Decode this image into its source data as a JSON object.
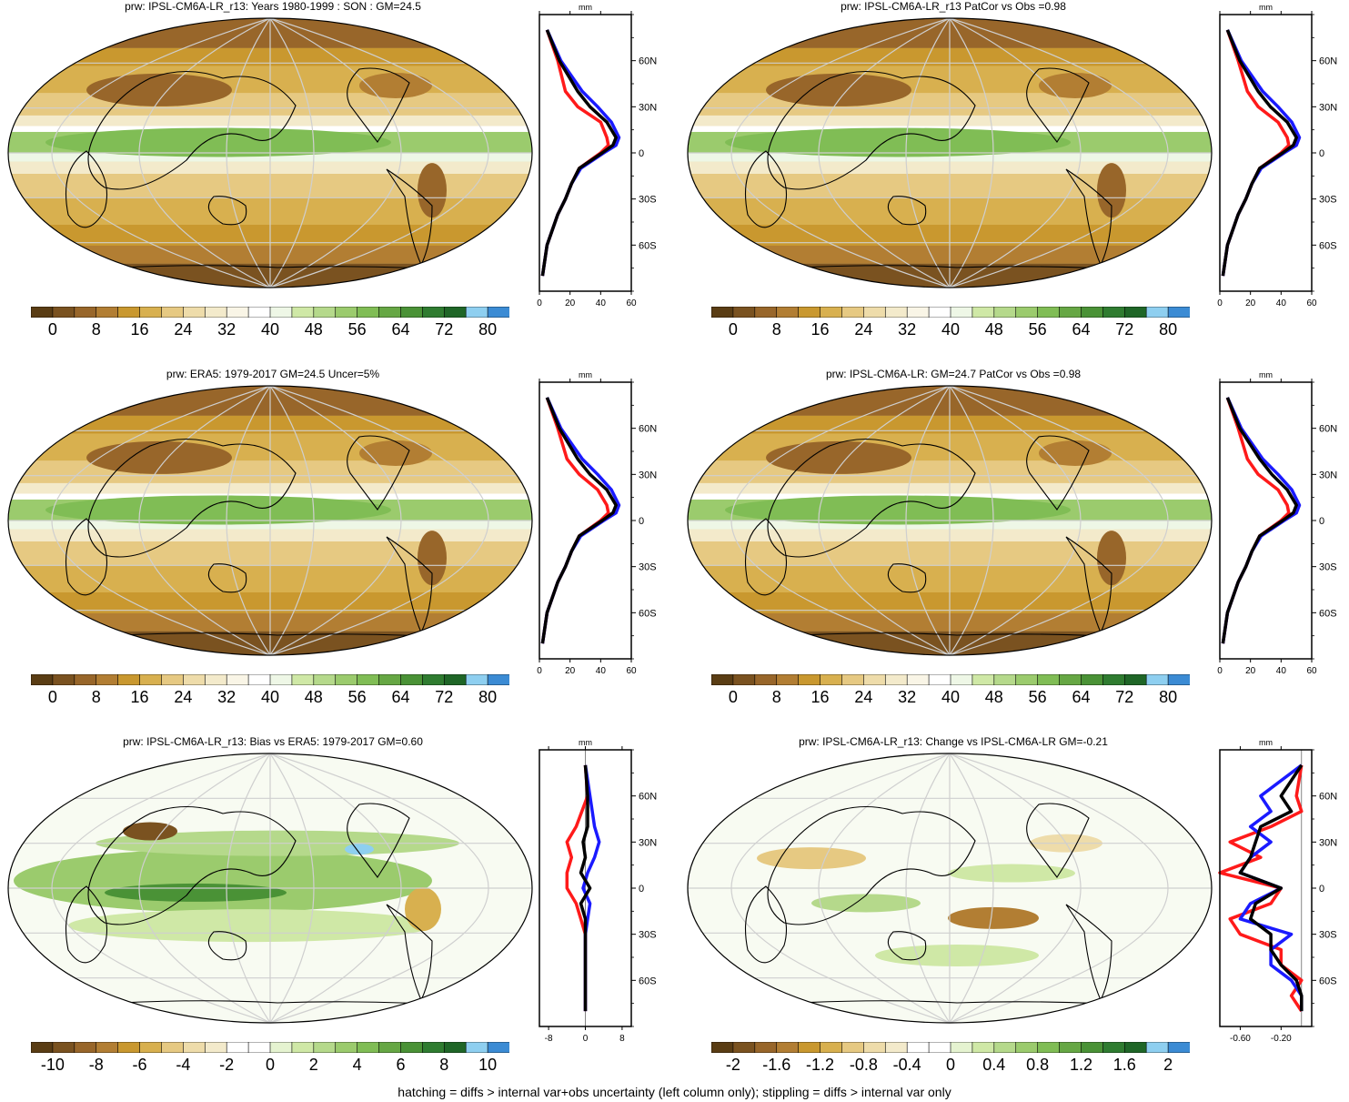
{
  "footer": "hatching = diffs > internal var+obs uncertainty (left column only); stippling = diffs > internal var only",
  "palette_abs": [
    "#5a3d14",
    "#7a5220",
    "#98662a",
    "#b27e33",
    "#c9982f",
    "#d8b04f",
    "#e6c982",
    "#eedcaa",
    "#f3eacb",
    "#f9f5e6",
    "#ffffff",
    "#eef7e6",
    "#cfe8a6",
    "#b5d98b",
    "#9bcb6d",
    "#80bd55",
    "#66a744",
    "#4a9236",
    "#2f7c30",
    "#1f6627",
    "#8ecff0",
    "#3b8bd4"
  ],
  "palette_div": [
    "#5a3d14",
    "#7a5220",
    "#98662a",
    "#b27e33",
    "#c9982f",
    "#d8b04f",
    "#e6c982",
    "#eedcaa",
    "#f3eacb",
    "#ffffff",
    "#ffffff",
    "#e5f3d0",
    "#cfe8a6",
    "#b5d98b",
    "#9bcb6d",
    "#80bd55",
    "#66a744",
    "#4a9236",
    "#2f7c30",
    "#1f6627",
    "#8ecff0",
    "#3b8bd4"
  ],
  "panels": [
    {
      "title": "prw: IPSL-CM6A-LR_r13: Years 1980-1999 : SON : GM=24.5",
      "cbar_labels": [
        "0",
        "8",
        "16",
        "24",
        "32",
        "40",
        "48",
        "56",
        "64",
        "72",
        "80"
      ],
      "cbar_kind": "abs"
    },
    {
      "title": "prw: IPSL-CM6A-LR_r13 PatCor vs Obs =0.98",
      "cbar_labels": [
        "0",
        "8",
        "16",
        "24",
        "32",
        "40",
        "48",
        "56",
        "64",
        "72",
        "80"
      ],
      "cbar_kind": "abs"
    },
    {
      "title": "prw: ERA5: 1979-2017 GM=24.5 Uncer=5%",
      "cbar_labels": [
        "0",
        "8",
        "16",
        "24",
        "32",
        "40",
        "48",
        "56",
        "64",
        "72",
        "80"
      ],
      "cbar_kind": "abs"
    },
    {
      "title": "prw: IPSL-CM6A-LR: GM=24.7 PatCor vs Obs =0.98",
      "cbar_labels": [
        "0",
        "8",
        "16",
        "24",
        "32",
        "40",
        "48",
        "56",
        "64",
        "72",
        "80"
      ],
      "cbar_kind": "abs"
    },
    {
      "title": "prw: IPSL-CM6A-LR_r13: Bias vs ERA5: 1979-2017  GM=0.60",
      "cbar_labels": [
        "-10",
        "-8",
        "-6",
        "-4",
        "-2",
        "0",
        "2",
        "4",
        "6",
        "8",
        "10"
      ],
      "cbar_kind": "div"
    },
    {
      "title": "prw: IPSL-CM6A-LR_r13: Change vs IPSL-CM6A-LR GM=-0.21",
      "cbar_labels": [
        "-2",
        "-1.6",
        "-1.2",
        "-0.8",
        "-0.4",
        "0",
        "0.4",
        "0.8",
        "1.2",
        "1.6",
        "2"
      ],
      "cbar_kind": "div"
    }
  ],
  "chart_data": [
    {
      "type": "line",
      "title": "",
      "unit": "mm",
      "ylabels": [
        "60N",
        "30N",
        "0",
        "30S",
        "60S"
      ],
      "xticks": [
        "0",
        "20",
        "40",
        "60"
      ],
      "xlim": [
        0,
        60
      ],
      "ylim": [
        -90,
        90
      ],
      "series": [
        {
          "color": "red",
          "lat": [
            80,
            60,
            40,
            30,
            20,
            10,
            5,
            0,
            -10,
            -20,
            -30,
            -40,
            -60,
            -80
          ],
          "values": [
            5,
            12,
            17,
            25,
            40,
            44,
            45,
            40,
            26,
            21,
            17,
            12,
            5,
            2
          ]
        },
        {
          "color": "blue",
          "lat": [
            80,
            60,
            40,
            30,
            20,
            10,
            5,
            0,
            -10,
            -20,
            -30,
            -40,
            -60,
            -80
          ],
          "values": [
            5,
            14,
            28,
            38,
            47,
            52,
            50,
            42,
            27,
            21,
            17,
            12,
            5,
            2
          ]
        },
        {
          "color": "black",
          "lat": [
            80,
            60,
            40,
            30,
            20,
            10,
            5,
            0,
            -10,
            -20,
            -30,
            -40,
            -60,
            -80
          ],
          "values": [
            5,
            13,
            25,
            33,
            44,
            50,
            48,
            41,
            26,
            21,
            17,
            12,
            5,
            2
          ]
        }
      ]
    },
    {
      "type": "line",
      "title": "",
      "unit": "mm",
      "ylabels": [
        "60N",
        "30N",
        "0",
        "30S",
        "60S"
      ],
      "xticks": [
        "0",
        "20",
        "40",
        "60"
      ],
      "xlim": [
        0,
        60
      ],
      "ylim": [
        -90,
        90
      ],
      "series": [
        {
          "color": "red",
          "lat": [
            80,
            60,
            40,
            30,
            20,
            10,
            5,
            0,
            -10,
            -20,
            -30,
            -40,
            -60,
            -80
          ],
          "values": [
            5,
            12,
            18,
            25,
            38,
            44,
            45,
            40,
            26,
            21,
            17,
            12,
            5,
            2
          ]
        },
        {
          "color": "blue",
          "lat": [
            80,
            60,
            40,
            30,
            20,
            10,
            5,
            0,
            -10,
            -20,
            -30,
            -40,
            -60,
            -80
          ],
          "values": [
            5,
            14,
            28,
            38,
            47,
            52,
            50,
            42,
            27,
            21,
            17,
            12,
            5,
            2
          ]
        },
        {
          "color": "black",
          "lat": [
            80,
            60,
            40,
            30,
            20,
            10,
            5,
            0,
            -10,
            -20,
            -30,
            -40,
            -60,
            -80
          ],
          "values": [
            5,
            13,
            25,
            33,
            44,
            50,
            48,
            41,
            26,
            21,
            17,
            12,
            5,
            2
          ]
        }
      ]
    },
    {
      "type": "line",
      "title": "",
      "unit": "mm",
      "ylabels": [
        "60N",
        "30N",
        "0",
        "30S",
        "60S"
      ],
      "xticks": [
        "0",
        "20",
        "40",
        "60"
      ],
      "xlim": [
        0,
        60
      ],
      "ylim": [
        -90,
        90
      ],
      "series": [
        {
          "color": "red",
          "lat": [
            80,
            60,
            40,
            30,
            20,
            10,
            5,
            0,
            -10,
            -20,
            -30,
            -40,
            -60,
            -80
          ],
          "values": [
            5,
            12,
            18,
            26,
            38,
            44,
            45,
            40,
            26,
            21,
            17,
            12,
            5,
            2
          ]
        },
        {
          "color": "blue",
          "lat": [
            80,
            60,
            40,
            30,
            20,
            10,
            5,
            0,
            -10,
            -20,
            -30,
            -40,
            -60,
            -80
          ],
          "values": [
            5,
            14,
            28,
            38,
            47,
            52,
            50,
            42,
            27,
            21,
            17,
            12,
            5,
            2
          ]
        },
        {
          "color": "black",
          "lat": [
            80,
            60,
            40,
            30,
            20,
            10,
            5,
            0,
            -10,
            -20,
            -30,
            -40,
            -60,
            -80
          ],
          "values": [
            5,
            13,
            25,
            33,
            44,
            50,
            48,
            41,
            26,
            21,
            17,
            12,
            5,
            2
          ]
        }
      ]
    },
    {
      "type": "line",
      "title": "",
      "unit": "mm",
      "ylabels": [
        "60N",
        "30N",
        "0",
        "30S",
        "60S"
      ],
      "xticks": [
        "0",
        "20",
        "40",
        "60"
      ],
      "xlim": [
        0,
        60
      ],
      "ylim": [
        -90,
        90
      ],
      "series": [
        {
          "color": "red",
          "lat": [
            80,
            60,
            40,
            30,
            20,
            10,
            5,
            0,
            -10,
            -20,
            -30,
            -40,
            -60,
            -80
          ],
          "values": [
            5,
            12,
            18,
            25,
            38,
            44,
            45,
            40,
            26,
            21,
            17,
            12,
            5,
            2
          ]
        },
        {
          "color": "blue",
          "lat": [
            80,
            60,
            40,
            30,
            20,
            10,
            5,
            0,
            -10,
            -20,
            -30,
            -40,
            -60,
            -80
          ],
          "values": [
            5,
            14,
            28,
            38,
            47,
            52,
            50,
            42,
            27,
            21,
            17,
            12,
            5,
            2
          ]
        },
        {
          "color": "black",
          "lat": [
            80,
            60,
            40,
            30,
            20,
            10,
            5,
            0,
            -10,
            -20,
            -30,
            -40,
            -60,
            -80
          ],
          "values": [
            5,
            13,
            26,
            34,
            44,
            50,
            48,
            41,
            26,
            21,
            17,
            12,
            5,
            2
          ]
        }
      ]
    },
    {
      "type": "line",
      "title": "",
      "unit": "mm",
      "ylabels": [
        "60N",
        "30N",
        "0",
        "30S",
        "60S"
      ],
      "xticks": [
        "-8",
        "0",
        "8"
      ],
      "xlim": [
        -10,
        10
      ],
      "ylim": [
        -90,
        90
      ],
      "series": [
        {
          "color": "red",
          "lat": [
            80,
            60,
            40,
            30,
            20,
            10,
            0,
            -10,
            -20,
            -30,
            -40,
            -60,
            -80
          ],
          "values": [
            0,
            0.5,
            -2,
            -4,
            -3,
            -4,
            -4,
            -2,
            -1,
            0,
            0,
            0,
            0
          ]
        },
        {
          "color": "blue",
          "lat": [
            80,
            60,
            40,
            30,
            20,
            10,
            0,
            -10,
            -20,
            -30,
            -40,
            -60,
            -80
          ],
          "values": [
            0,
            1,
            2,
            3,
            2,
            0.5,
            -0.5,
            1,
            0.5,
            0,
            0,
            0,
            0
          ]
        },
        {
          "color": "black",
          "lat": [
            80,
            60,
            40,
            30,
            20,
            10,
            0,
            -10,
            -20,
            -30,
            -40,
            -60,
            -80
          ],
          "values": [
            0,
            0.5,
            0.5,
            -0.5,
            0,
            -1,
            1,
            -1,
            0,
            0,
            0,
            0,
            0
          ]
        }
      ]
    },
    {
      "type": "line",
      "title": "",
      "unit": "mm",
      "ylabels": [
        "60N",
        "30N",
        "0",
        "30S",
        "60S"
      ],
      "xticks": [
        "-0.60",
        "-0.20"
      ],
      "xlim": [
        -0.8,
        0.1
      ],
      "ylim": [
        -90,
        90
      ],
      "series": [
        {
          "color": "red",
          "lat": [
            80,
            60,
            50,
            40,
            30,
            20,
            10,
            0,
            -10,
            -20,
            -30,
            -40,
            -50,
            -60,
            -70,
            -80
          ],
          "values": [
            0,
            -0.05,
            0,
            -0.3,
            -0.7,
            -0.4,
            -0.8,
            -0.2,
            -0.3,
            -0.7,
            -0.6,
            -0.2,
            -0.2,
            0,
            -0.1,
            0
          ]
        },
        {
          "color": "blue",
          "lat": [
            80,
            60,
            50,
            40,
            30,
            20,
            10,
            0,
            -10,
            -20,
            -30,
            -40,
            -50,
            -60,
            -70,
            -80
          ],
          "values": [
            0,
            -0.4,
            -0.3,
            -0.5,
            -0.3,
            -0.5,
            -0.6,
            -0.2,
            -0.5,
            -0.6,
            -0.1,
            -0.3,
            -0.3,
            -0.1,
            0,
            0
          ]
        },
        {
          "color": "black",
          "lat": [
            80,
            60,
            50,
            40,
            30,
            20,
            10,
            0,
            -10,
            -20,
            -30,
            -40,
            -50,
            -60,
            -70,
            -80
          ],
          "values": [
            0,
            -0.2,
            -0.1,
            -0.4,
            -0.45,
            -0.5,
            -0.6,
            -0.2,
            -0.45,
            -0.5,
            -0.3,
            -0.3,
            -0.2,
            -0.05,
            0,
            0
          ]
        }
      ]
    }
  ]
}
